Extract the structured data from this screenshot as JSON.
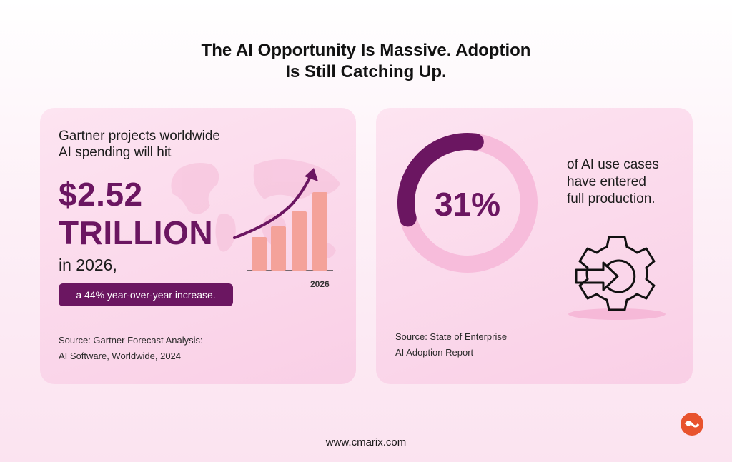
{
  "headline": {
    "line1": "The AI Opportunity Is Massive. Adoption",
    "line2": "Is Still Catching Up."
  },
  "spending": {
    "intro_line1": "Gartner projects worldwide",
    "intro_line2": "AI spending will hit",
    "amount": "$2.52",
    "unit": "TRILLION",
    "year_text": "in 2026,",
    "increase_pill": "a 44% year-over-year increase.",
    "chart_year_label": "2026",
    "source_line1": "Source: Gartner Forecast Analysis:",
    "source_line2": "AI Software, Worldwide, 2024",
    "bar_color": "#f4a29a",
    "arrow_color": "#6b1661"
  },
  "adoption": {
    "percent": "31%",
    "percent_value": 31,
    "desc_line1": "of AI use cases",
    "desc_line2": "have entered",
    "desc_line3": "full production.",
    "source_line1": "Source: State of Enterprise",
    "source_line2": "AI Adoption Report",
    "ring_color": "#6b1661",
    "track_color": "#f7bcdb"
  },
  "footer": {
    "website": "www.cmarix.com"
  },
  "colors": {
    "accent": "#6b1661",
    "card_bg": "#fbd9ec",
    "logo": "#e8532e"
  }
}
